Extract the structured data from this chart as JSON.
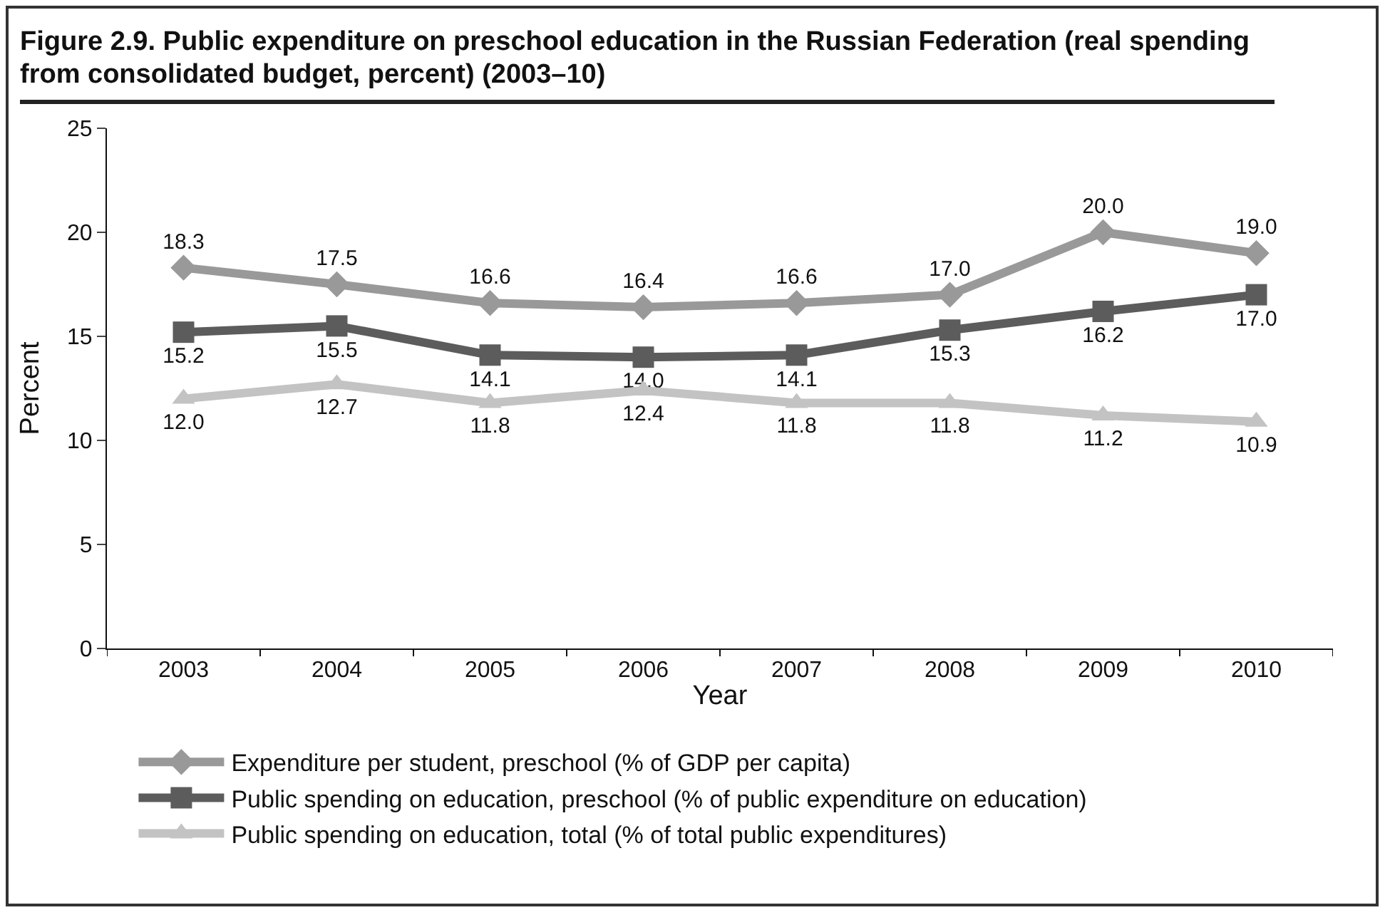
{
  "chart_data": {
    "type": "line",
    "title": "Figure 2.9. Public expenditure on preschool education in the Russian Federation (real spending from consolidated budget, percent) (2003–10)",
    "xlabel": "Year",
    "ylabel": "Percent",
    "categories": [
      "2003",
      "2004",
      "2005",
      "2006",
      "2007",
      "2008",
      "2009",
      "2010"
    ],
    "ylim": [
      0,
      25
    ],
    "yticks": [
      0,
      5,
      10,
      15,
      20,
      25
    ],
    "grid": false,
    "legend": "bottom",
    "series": [
      {
        "name": "Expenditure per student, preschool (% of GDP per capita)",
        "color": "#999999",
        "marker": "diamond",
        "values": [
          18.3,
          17.5,
          16.6,
          16.4,
          16.6,
          17.0,
          20.0,
          19.0
        ],
        "value_labels": [
          "18.3",
          "17.5",
          "16.6",
          "16.4",
          "16.6",
          "17.0",
          "20.0",
          "19.0"
        ]
      },
      {
        "name": "Public spending on education, preschool (% of public expenditure on education)",
        "color": "#5c5c5c",
        "marker": "square",
        "values": [
          15.2,
          15.5,
          14.1,
          14.0,
          14.1,
          15.3,
          16.2,
          17.0
        ],
        "value_labels": [
          "15.2",
          "15.5",
          "14.1",
          "14.0",
          "14.1",
          "15.3",
          "16.2",
          "17.0"
        ]
      },
      {
        "name": "Public spending on education, total (% of total public expenditures)",
        "color": "#c3c3c3",
        "marker": "triangle",
        "values": [
          12.0,
          12.7,
          11.8,
          12.4,
          11.8,
          11.8,
          11.2,
          10.9
        ],
        "value_labels": [
          "12.0",
          "12.7",
          "11.8",
          "12.4",
          "11.8",
          "11.8",
          "11.2",
          "10.9"
        ]
      }
    ]
  }
}
